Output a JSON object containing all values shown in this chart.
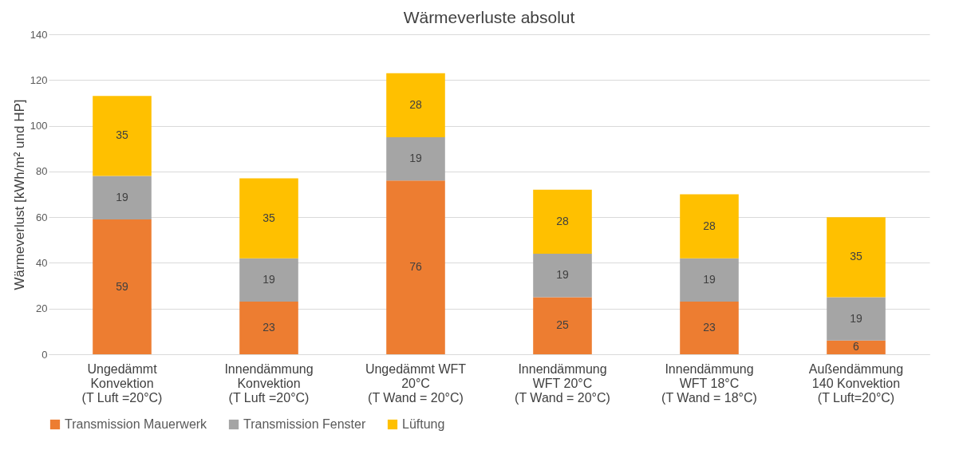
{
  "chart_data": {
    "type": "bar",
    "title": "Wärmeverluste absolut",
    "ylabel": "Wärmeverlust [kWh/m² und HP]",
    "categories": [
      "Ungedämmt\nKonvektion\n(T Luft =20°C)",
      "Innendämmung\nKonvektion\n(T Luft =20°C)",
      "Ungedämmt WFT\n20°C\n(T Wand = 20°C)",
      "Innendämmung\nWFT 20°C\n(T Wand = 20°C)",
      "Innendämmung\nWFT 18°C\n(T Wand = 18°C)",
      "Außendämmung\n140 Konvektion\n(T Luft=20°C)"
    ],
    "series": [
      {
        "name": "Transmission Mauerwerk",
        "color": "#ed7d31",
        "values": [
          59,
          23,
          76,
          25,
          23,
          6
        ]
      },
      {
        "name": "Transmission Fenster",
        "color": "#a5a5a5",
        "values": [
          19,
          19,
          19,
          19,
          19,
          19
        ]
      },
      {
        "name": "Lüftung",
        "color": "#ffc000",
        "values": [
          35,
          35,
          28,
          28,
          28,
          35
        ]
      }
    ],
    "stacked": true,
    "ylim": [
      0,
      140
    ],
    "yticks": [
      0,
      20,
      40,
      60,
      80,
      100,
      120,
      140
    ],
    "grid": "y",
    "legend": "bottom",
    "data_labels": true
  }
}
